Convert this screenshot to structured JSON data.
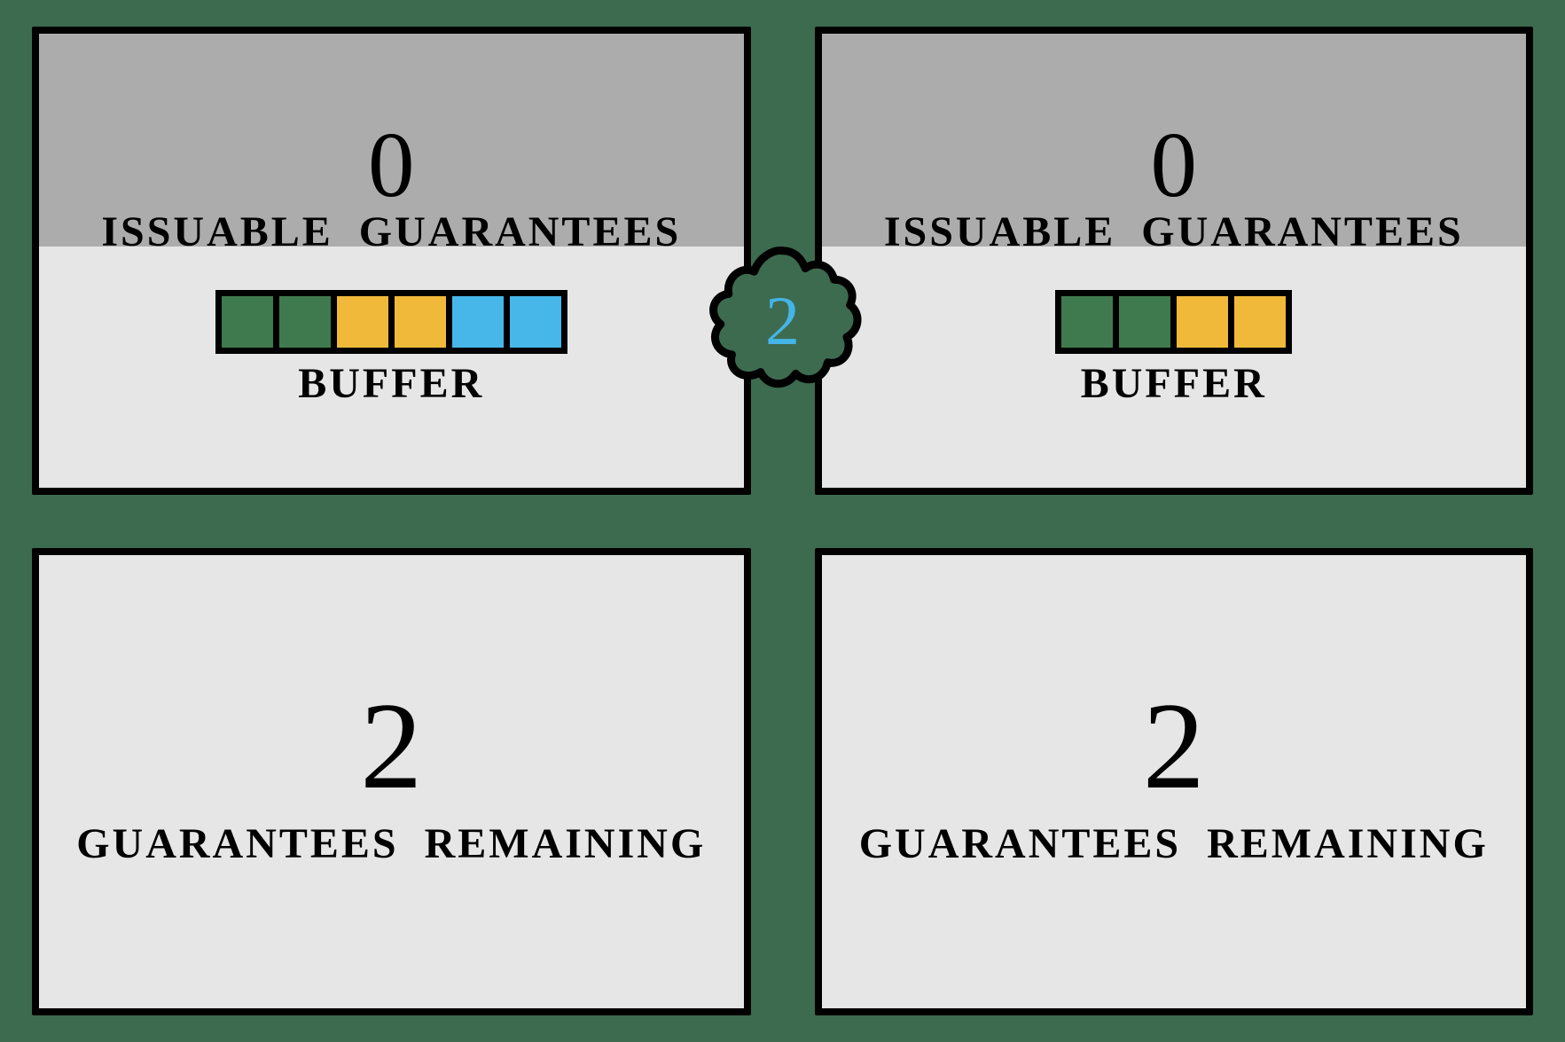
{
  "colors": {
    "background": "#3d6b4f",
    "panel_bg": "#e6e6e6",
    "panel_top_band": "#acacac",
    "border": "#000000",
    "cloud_text": "#45b4e6",
    "buffer_green": "#3f7a4e",
    "buffer_yellow": "#f0b93a",
    "buffer_blue": "#47b7ea"
  },
  "cloud": {
    "value": "2"
  },
  "panels": {
    "top_left": {
      "value": "0",
      "label": "ISSUABLE  GUARANTEES",
      "buffer_label": "BUFFER",
      "buffer": [
        "#3f7a4e",
        "#3f7a4e",
        "#f0b93a",
        "#f0b93a",
        "#47b7ea",
        "#47b7ea"
      ]
    },
    "top_right": {
      "value": "0",
      "label": "ISSUABLE  GUARANTEES",
      "buffer_label": "BUFFER",
      "buffer": [
        "#3f7a4e",
        "#3f7a4e",
        "#f0b93a",
        "#f0b93a"
      ]
    },
    "bottom_left": {
      "value": "2",
      "label": "GUARANTEES  REMAINING"
    },
    "bottom_right": {
      "value": "2",
      "label": "GUARANTEES REMAINING"
    }
  }
}
